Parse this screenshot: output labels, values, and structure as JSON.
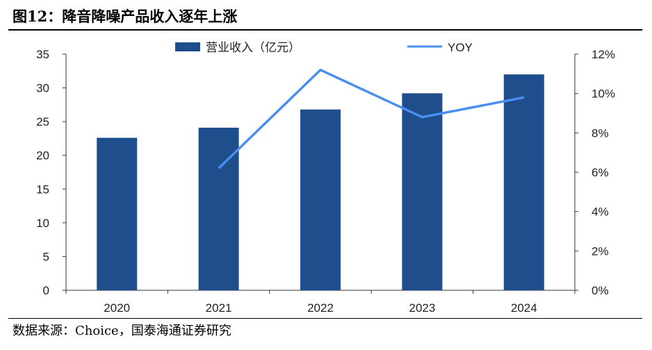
{
  "figure": {
    "title": "图12：降音降噪产品收入逐年上涨",
    "source": "数据来源：Choice，国泰海通证券研究"
  },
  "colors": {
    "bar": "#1f4e8c",
    "line": "#4a8ef0",
    "axis": "#333333"
  },
  "chart_data": {
    "type": "bar",
    "categories": [
      "2020",
      "2021",
      "2022",
      "2023",
      "2024"
    ],
    "series": [
      {
        "name": "营业收入（亿元）",
        "type": "bar",
        "axis": "left",
        "values": [
          22.6,
          24.1,
          26.8,
          29.2,
          32.0
        ]
      },
      {
        "name": "YOY",
        "type": "line",
        "axis": "right",
        "values": [
          null,
          6.2,
          11.2,
          8.8,
          9.8
        ]
      }
    ],
    "y_left": {
      "min": 0,
      "max": 35,
      "ticks": [
        "0",
        "5",
        "10",
        "15",
        "20",
        "25",
        "30",
        "35"
      ]
    },
    "y_right": {
      "min": 0,
      "max": 12,
      "ticks": [
        "0%",
        "2%",
        "4%",
        "6%",
        "8%",
        "10%",
        "12%"
      ]
    },
    "legend_position": "top-center",
    "grid": false
  }
}
